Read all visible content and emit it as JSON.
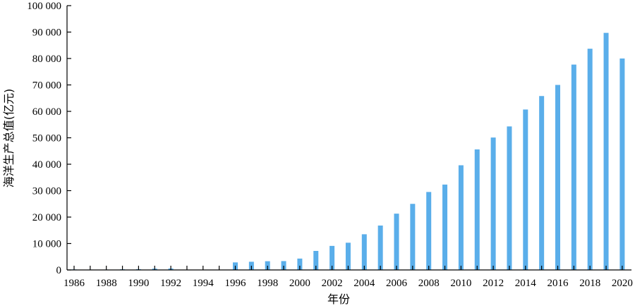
{
  "chart_data": {
    "type": "bar",
    "title": "",
    "xlabel": "年份",
    "ylabel": "海洋生产总值(亿元)",
    "ylim": [
      0,
      100000
    ],
    "yticks": [
      0,
      10000,
      20000,
      30000,
      40000,
      50000,
      60000,
      70000,
      80000,
      90000,
      100000
    ],
    "ytick_labels": [
      "0",
      "10 000",
      "20 000",
      "30 000",
      "40 000",
      "50 000",
      "60 000",
      "70 000",
      "80 000",
      "90 000",
      "100 000"
    ],
    "xtick_labels": [
      "1986",
      "1988",
      "1990",
      "1992",
      "1994",
      "1996",
      "1998",
      "2000",
      "2002",
      "2004",
      "2006",
      "2008",
      "2010",
      "2012",
      "2014",
      "2016",
      "2018",
      "2020"
    ],
    "categories": [
      "1986",
      "1987",
      "1988",
      "1989",
      "1990",
      "1991",
      "1992",
      "1993",
      "1994",
      "1995",
      "1996",
      "1997",
      "1998",
      "1999",
      "2000",
      "2001",
      "2002",
      "2003",
      "2004",
      "2005",
      "2006",
      "2007",
      "2008",
      "2009",
      "2010",
      "2011",
      "2012",
      "2013",
      "2014",
      "2015",
      "2016",
      "2017",
      "2018",
      "2019",
      "2020"
    ],
    "values": [
      200,
      150,
      150,
      250,
      300,
      500,
      550,
      null,
      null,
      null,
      2850,
      3100,
      3300,
      3350,
      4300,
      7200,
      9100,
      10300,
      13500,
      16800,
      21300,
      25000,
      29500,
      32300,
      39600,
      45600,
      50100,
      54300,
      60700,
      65800,
      70000,
      77700,
      83700,
      89700,
      80000
    ],
    "bar_color": "#5aaeea",
    "grid": false,
    "legend": "none"
  }
}
